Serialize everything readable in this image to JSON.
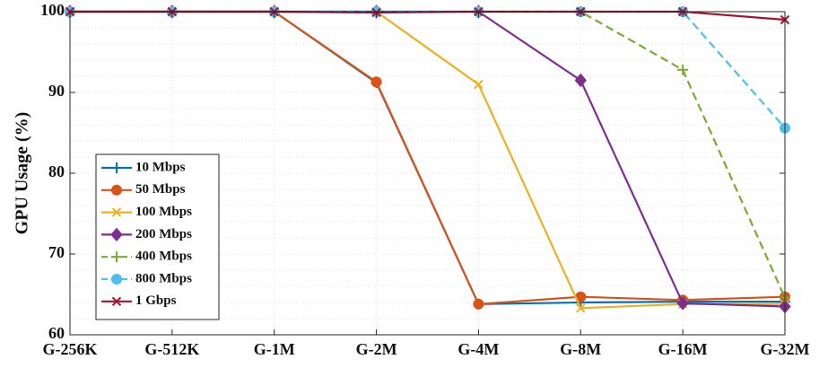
{
  "chart_data": {
    "type": "line",
    "title": "",
    "xlabel": "",
    "ylabel": "GPU Usage (%)",
    "categories": [
      "G-256K",
      "G-512K",
      "G-1M",
      "G-2M",
      "G-4M",
      "G-8M",
      "G-16M",
      "G-32M"
    ],
    "ylim": [
      60,
      100
    ],
    "yticks": [
      60,
      70,
      80,
      90,
      100
    ],
    "grid": true,
    "legend_position": "lower-left",
    "series": [
      {
        "name": "10 Mbps",
        "color": "#0072BD",
        "marker": "plus",
        "dash": false,
        "values": [
          100,
          100,
          100,
          91.2,
          63.8,
          64.0,
          64.1,
          64.1
        ]
      },
      {
        "name": "50 Mbps",
        "color": "#D95319",
        "marker": "circle",
        "dash": false,
        "values": [
          100,
          100,
          100,
          91.3,
          63.8,
          64.7,
          64.3,
          64.7
        ]
      },
      {
        "name": "100 Mbps",
        "color": "#EDB120",
        "marker": "x",
        "dash": false,
        "values": [
          100,
          100,
          100,
          100,
          91.0,
          63.3,
          63.8,
          63.8
        ]
      },
      {
        "name": "200 Mbps",
        "color": "#7E2F8E",
        "marker": "diamond",
        "dash": false,
        "values": [
          100,
          100,
          100,
          100,
          100,
          91.5,
          63.9,
          63.5
        ]
      },
      {
        "name": "400 Mbps",
        "color": "#77AC30",
        "marker": "plus",
        "dash": true,
        "values": [
          100,
          100,
          100,
          100,
          100,
          100,
          92.8,
          64.6
        ]
      },
      {
        "name": "800 Mbps",
        "color": "#4DBEEE",
        "marker": "circle",
        "dash": true,
        "values": [
          100,
          100,
          100,
          100,
          100,
          100,
          100,
          85.6
        ]
      },
      {
        "name": "1 Gbps",
        "color": "#A2142F",
        "marker": "x",
        "dash": false,
        "values": [
          100,
          100,
          100,
          99.9,
          100,
          100,
          100,
          99.0
        ]
      }
    ]
  }
}
